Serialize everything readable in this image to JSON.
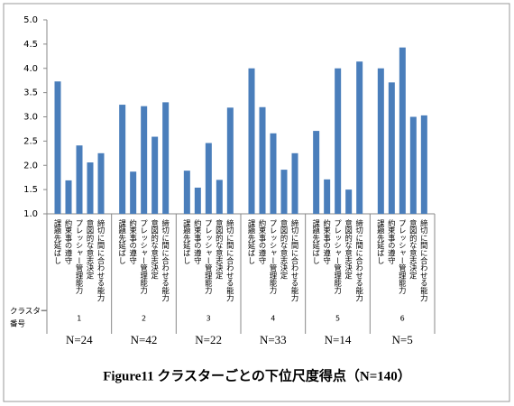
{
  "chart_data": {
    "type": "bar",
    "title": "Figure11  クラスターごとの下位尺度得点（N=140）",
    "categories": [
      "1",
      "2",
      "3",
      "4",
      "5",
      "6"
    ],
    "cluster_label_lines": [
      "クラスター",
      "番号"
    ],
    "n_labels": [
      "N=24",
      "N=42",
      "N=22",
      "N=33",
      "N=14",
      "N=5"
    ],
    "series": [
      {
        "name": "課題先延ばし",
        "color": "#4a7ebb",
        "values": [
          3.73,
          3.25,
          1.89,
          4.0,
          2.71,
          4.0
        ]
      },
      {
        "name": "約束事の遵守",
        "color": "#4a7ebb",
        "values": [
          1.69,
          1.87,
          1.54,
          3.2,
          1.71,
          3.71
        ]
      },
      {
        "name": "プレッシャー管理能力",
        "color": "#4a7ebb",
        "values": [
          2.41,
          3.22,
          2.46,
          2.66,
          4.0,
          4.43
        ]
      },
      {
        "name": "意図的な意志決定",
        "color": "#4a7ebb",
        "values": [
          2.06,
          2.59,
          1.7,
          1.91,
          1.5,
          3.0
        ]
      },
      {
        "name": "締切に間に合わせる能力",
        "color": "#4a7ebb",
        "values": [
          2.25,
          3.3,
          3.19,
          2.25,
          4.14,
          3.03
        ]
      }
    ],
    "ylim": [
      1,
      5
    ],
    "yticks": [
      {
        "value": 1,
        "label": "1.0"
      },
      {
        "value": 1.5,
        "label": "1.5"
      },
      {
        "value": 2,
        "label": "2.0"
      },
      {
        "value": 2.5,
        "label": "2.5"
      },
      {
        "value": 3,
        "label": "3.0"
      },
      {
        "value": 3.5,
        "label": "3.5"
      },
      {
        "value": 4,
        "label": "4.0"
      },
      {
        "value": 4.5,
        "label": "4.5"
      },
      {
        "value": 5,
        "label": "5.0"
      }
    ]
  }
}
